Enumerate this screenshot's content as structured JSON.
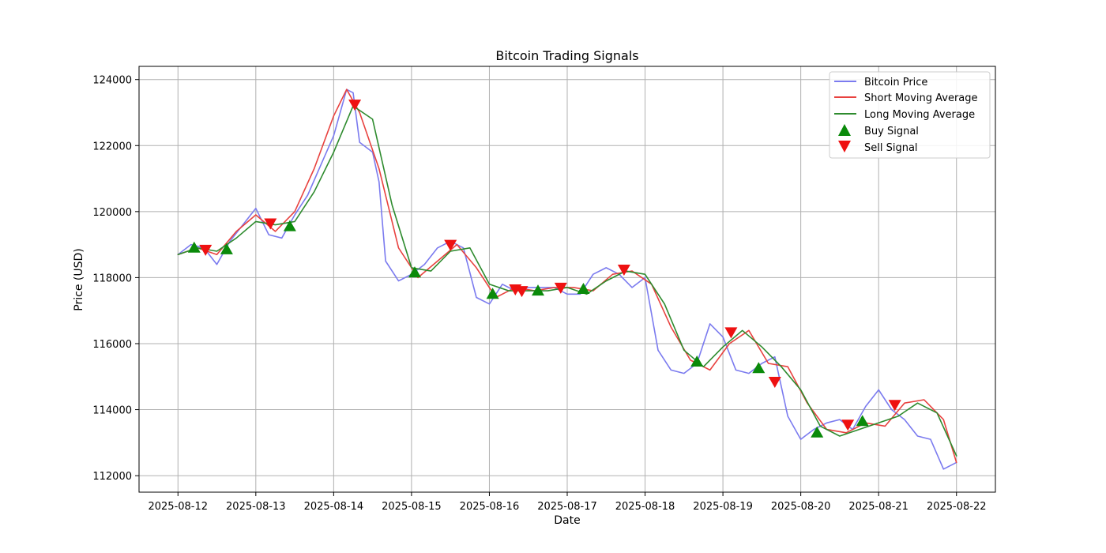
{
  "chart_data": {
    "type": "line",
    "title": "Bitcoin Trading Signals",
    "xlabel": "Date",
    "ylabel": "Price (USD)",
    "xlim": [
      "2025-08-11T12:00",
      "2025-08-22T12:00"
    ],
    "ylim": [
      111500,
      124400
    ],
    "grid": true,
    "legend_position": "top-right",
    "x_ticks": [
      "2025-08-12",
      "2025-08-13",
      "2025-08-14",
      "2025-08-15",
      "2025-08-16",
      "2025-08-17",
      "2025-08-18",
      "2025-08-19",
      "2025-08-20",
      "2025-08-21",
      "2025-08-22"
    ],
    "y_ticks": [
      112000,
      114000,
      116000,
      118000,
      120000,
      122000,
      124000
    ],
    "series": [
      {
        "name": "Bitcoin Price",
        "color": "#7b7bef",
        "x": [
          "2025-08-12T00:00",
          "2025-08-12T04:00",
          "2025-08-12T08:00",
          "2025-08-12T12:00",
          "2025-08-12T16:00",
          "2025-08-12T20:00",
          "2025-08-13T00:00",
          "2025-08-13T04:00",
          "2025-08-13T08:00",
          "2025-08-13T12:00",
          "2025-08-13T16:00",
          "2025-08-13T20:00",
          "2025-08-14T00:00",
          "2025-08-14T04:00",
          "2025-08-14T06:00",
          "2025-08-14T08:00",
          "2025-08-14T12:00",
          "2025-08-14T14:00",
          "2025-08-14T16:00",
          "2025-08-14T20:00",
          "2025-08-15T00:00",
          "2025-08-15T04:00",
          "2025-08-15T08:00",
          "2025-08-15T12:00",
          "2025-08-15T16:00",
          "2025-08-15T20:00",
          "2025-08-16T00:00",
          "2025-08-16T04:00",
          "2025-08-16T08:00",
          "2025-08-16T12:00",
          "2025-08-16T16:00",
          "2025-08-16T20:00",
          "2025-08-17T00:00",
          "2025-08-17T04:00",
          "2025-08-17T08:00",
          "2025-08-17T12:00",
          "2025-08-17T16:00",
          "2025-08-17T20:00",
          "2025-08-18T00:00",
          "2025-08-18T04:00",
          "2025-08-18T08:00",
          "2025-08-18T12:00",
          "2025-08-18T16:00",
          "2025-08-18T20:00",
          "2025-08-19T00:00",
          "2025-08-19T04:00",
          "2025-08-19T08:00",
          "2025-08-19T12:00",
          "2025-08-19T16:00",
          "2025-08-19T20:00",
          "2025-08-20T00:00",
          "2025-08-20T04:00",
          "2025-08-20T08:00",
          "2025-08-20T12:00",
          "2025-08-20T16:00",
          "2025-08-20T20:00",
          "2025-08-21T00:00",
          "2025-08-21T04:00",
          "2025-08-21T08:00",
          "2025-08-21T12:00",
          "2025-08-21T16:00",
          "2025-08-21T20:00",
          "2025-08-22T00:00"
        ],
        "values": [
          118700,
          119000,
          118900,
          118400,
          119100,
          119600,
          120100,
          119300,
          119200,
          119900,
          120500,
          121400,
          122300,
          123700,
          123600,
          122100,
          121800,
          120900,
          118500,
          117900,
          118100,
          118400,
          118900,
          119100,
          118900,
          117400,
          117200,
          117800,
          117600,
          117700,
          117700,
          117700,
          117500,
          117500,
          118100,
          118300,
          118100,
          117700,
          118000,
          115800,
          115200,
          115100,
          115400,
          116600,
          116200,
          115200,
          115100,
          115400,
          115600,
          113800,
          113100,
          113400,
          113600,
          113700,
          113400,
          114100,
          114600,
          114000,
          113700,
          113200,
          113100,
          112200,
          112400
        ]
      },
      {
        "name": "Short Moving Average",
        "color": "#e8423f",
        "x": [
          "2025-08-12T00:00",
          "2025-08-12T06:00",
          "2025-08-12T12:00",
          "2025-08-12T18:00",
          "2025-08-13T00:00",
          "2025-08-13T06:00",
          "2025-08-13T12:00",
          "2025-08-13T18:00",
          "2025-08-14T00:00",
          "2025-08-14T04:00",
          "2025-08-14T08:00",
          "2025-08-14T14:00",
          "2025-08-14T20:00",
          "2025-08-15T02:00",
          "2025-08-15T08:00",
          "2025-08-15T14:00",
          "2025-08-15T20:00",
          "2025-08-16T02:00",
          "2025-08-16T08:00",
          "2025-08-16T14:00",
          "2025-08-16T20:00",
          "2025-08-17T02:00",
          "2025-08-17T08:00",
          "2025-08-17T14:00",
          "2025-08-17T20:00",
          "2025-08-18T02:00",
          "2025-08-18T08:00",
          "2025-08-18T14:00",
          "2025-08-18T20:00",
          "2025-08-19T02:00",
          "2025-08-19T08:00",
          "2025-08-19T14:00",
          "2025-08-19T20:00",
          "2025-08-20T02:00",
          "2025-08-20T08:00",
          "2025-08-20T14:00",
          "2025-08-20T20:00",
          "2025-08-21T02:00",
          "2025-08-21T08:00",
          "2025-08-21T14:00",
          "2025-08-21T20:00",
          "2025-08-22T00:00"
        ],
        "values": [
          118700,
          118900,
          118700,
          119400,
          119900,
          119400,
          120000,
          121300,
          122900,
          123700,
          123000,
          121300,
          118900,
          118000,
          118500,
          119000,
          118300,
          117400,
          117700,
          117600,
          117700,
          117700,
          117600,
          118100,
          118200,
          117800,
          116500,
          115500,
          115200,
          116000,
          116400,
          115400,
          115300,
          114200,
          113400,
          113300,
          113600,
          113500,
          114200,
          114300,
          113700,
          112400
        ]
      },
      {
        "name": "Long Moving Average",
        "color": "#2e8b2e",
        "x": [
          "2025-08-12T00:00",
          "2025-08-12T06:00",
          "2025-08-12T12:00",
          "2025-08-12T18:00",
          "2025-08-13T00:00",
          "2025-08-13T06:00",
          "2025-08-13T12:00",
          "2025-08-13T18:00",
          "2025-08-14T00:00",
          "2025-08-14T06:00",
          "2025-08-14T12:00",
          "2025-08-14T18:00",
          "2025-08-15T00:00",
          "2025-08-15T06:00",
          "2025-08-15T12:00",
          "2025-08-15T18:00",
          "2025-08-16T00:00",
          "2025-08-16T06:00",
          "2025-08-16T12:00",
          "2025-08-16T18:00",
          "2025-08-17T00:00",
          "2025-08-17T06:00",
          "2025-08-17T12:00",
          "2025-08-17T18:00",
          "2025-08-18T00:00",
          "2025-08-18T06:00",
          "2025-08-18T12:00",
          "2025-08-18T18:00",
          "2025-08-19T00:00",
          "2025-08-19T06:00",
          "2025-08-19T12:00",
          "2025-08-19T18:00",
          "2025-08-20T00:00",
          "2025-08-20T06:00",
          "2025-08-20T12:00",
          "2025-08-20T18:00",
          "2025-08-21T00:00",
          "2025-08-21T06:00",
          "2025-08-21T12:00",
          "2025-08-21T18:00",
          "2025-08-22T00:00"
        ],
        "values": [
          118700,
          118900,
          118800,
          119200,
          119700,
          119600,
          119700,
          120600,
          121800,
          123200,
          122800,
          120200,
          118300,
          118200,
          118800,
          118900,
          117800,
          117600,
          117600,
          117600,
          117700,
          117500,
          117900,
          118200,
          118100,
          117200,
          115800,
          115300,
          115900,
          116400,
          115900,
          115300,
          114600,
          113500,
          113200,
          113400,
          113600,
          113800,
          114200,
          113900,
          112600
        ]
      }
    ],
    "markers": [
      {
        "name": "Buy Signal",
        "color": "#0a8a0a",
        "symbol": "triangle-up",
        "x": [
          "2025-08-12T05:00",
          "2025-08-12T15:00",
          "2025-08-13T10:30",
          "2025-08-15T01:00",
          "2025-08-16T01:00",
          "2025-08-16T15:00",
          "2025-08-17T05:00",
          "2025-08-18T16:00",
          "2025-08-19T11:00",
          "2025-08-20T05:00",
          "2025-08-20T19:00"
        ],
        "values": [
          118900,
          118850,
          119550,
          118150,
          117500,
          117600,
          117650,
          115450,
          115250,
          113300,
          113650
        ]
      },
      {
        "name": "Sell Signal",
        "color": "#ee1111",
        "symbol": "triangle-down",
        "x": [
          "2025-08-12T08:30",
          "2025-08-13T04:30",
          "2025-08-14T06:30",
          "2025-08-15T12:00",
          "2025-08-16T08:00",
          "2025-08-16T10:00",
          "2025-08-16T22:00",
          "2025-08-17T17:30",
          "2025-08-19T02:30",
          "2025-08-19T16:00",
          "2025-08-20T14:30",
          "2025-08-21T05:00"
        ],
        "values": [
          118850,
          119650,
          123250,
          119000,
          117650,
          117600,
          117700,
          118250,
          116350,
          114850,
          113550,
          114150
        ]
      }
    ]
  }
}
